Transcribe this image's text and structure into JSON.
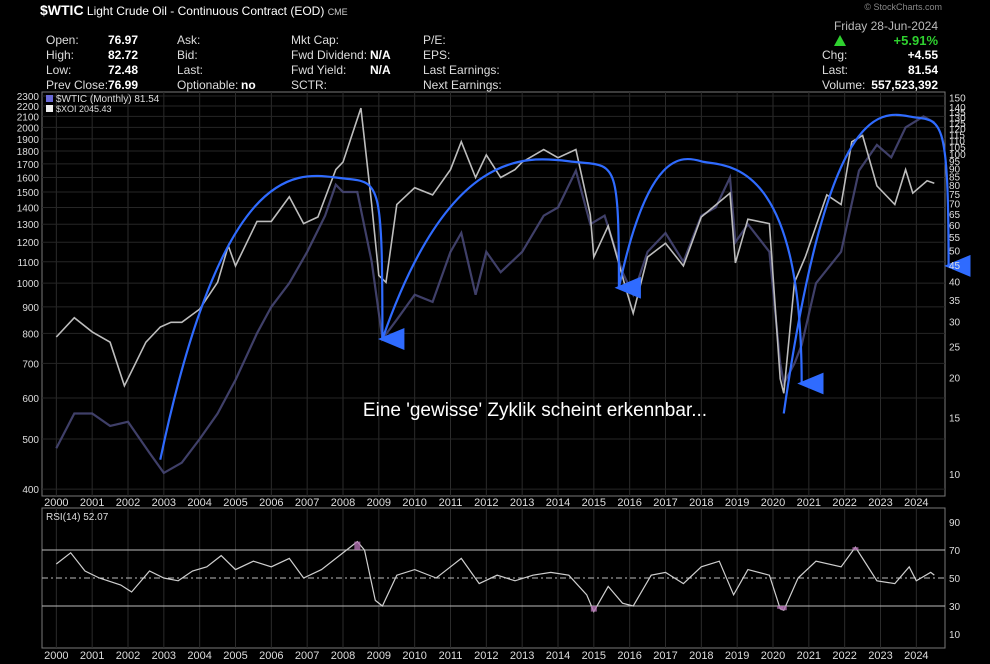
{
  "header": {
    "symbol": "$WTIC",
    "name": "Light Crude Oil - Continuous Contract (EOD)",
    "exchange": "CME",
    "copyright": "© StockCharts.com",
    "date": "Friday  28-Jun-2024",
    "change_pct": "+5.91%",
    "col1": [
      {
        "label": "Open:",
        "value": "76.97"
      },
      {
        "label": "High:",
        "value": "82.72"
      },
      {
        "label": "Low:",
        "value": "72.48"
      },
      {
        "label": "Prev Close:",
        "value": "76.99"
      }
    ],
    "col2": [
      {
        "label": "Ask:",
        "value": ""
      },
      {
        "label": "Bid:",
        "value": ""
      },
      {
        "label": "Last:",
        "value": ""
      },
      {
        "label": "Optionable:",
        "value": "no"
      }
    ],
    "col3": [
      {
        "label": "Mkt Cap:",
        "value": ""
      },
      {
        "label": "Fwd Dividend:",
        "value": "N/A"
      },
      {
        "label": "Fwd Yield:",
        "value": "N/A"
      },
      {
        "label": "SCTR:",
        "value": ""
      }
    ],
    "col4": [
      {
        "label": "P/E:"
      },
      {
        "label": "EPS:"
      },
      {
        "label": "Last Earnings:"
      },
      {
        "label": "Next Earnings:"
      }
    ],
    "col5": [
      {
        "label": "Chg:",
        "value": "+4.55"
      },
      {
        "label": "Last:",
        "value": "81.54"
      },
      {
        "label": "Volume:",
        "value": "557,523,392"
      }
    ]
  },
  "legend": {
    "primary": "$WTIC (Monthly) 81.54",
    "secondary": "$XOI 2045.43"
  },
  "annotation": "Eine 'gewisse' Zyklik scheint erkennbar...",
  "rsi_label": "RSI(14) 52.07",
  "colors": {
    "arcs": "#2f6bff",
    "rsi_overbought": "#b070b0",
    "up": "#27d427"
  },
  "chart_data": {
    "type": "line",
    "x_years": [
      "2000",
      "2001",
      "2002",
      "2003",
      "2004",
      "2005",
      "2006",
      "2007",
      "2008",
      "2009",
      "2010",
      "2011",
      "2012",
      "2013",
      "2014",
      "2015",
      "2016",
      "2017",
      "2018",
      "2019",
      "2020",
      "2021",
      "2022",
      "2023",
      "2024"
    ],
    "left_axis": {
      "scale": "log",
      "ticks": [
        400,
        500,
        600,
        700,
        800,
        900,
        1000,
        1100,
        1200,
        1300,
        1400,
        1500,
        1600,
        1700,
        1800,
        1900,
        2000,
        2100,
        2200,
        2300
      ]
    },
    "right_axis": {
      "scale": "log",
      "ticks": [
        10,
        15,
        20,
        25,
        30,
        35,
        40,
        45,
        50,
        55,
        60,
        65,
        70,
        75,
        80,
        85,
        90,
        95,
        100,
        105,
        110,
        115,
        120,
        125,
        130,
        135,
        140,
        150
      ]
    },
    "series": [
      {
        "name": "$WTIC (Monthly)",
        "axis": "right",
        "points": [
          [
            2000.0,
            27
          ],
          [
            2000.5,
            31
          ],
          [
            2001.0,
            28
          ],
          [
            2001.5,
            26
          ],
          [
            2001.9,
            19
          ],
          [
            2002.5,
            26
          ],
          [
            2002.9,
            29
          ],
          [
            2003.2,
            30
          ],
          [
            2003.5,
            30
          ],
          [
            2004.0,
            33
          ],
          [
            2004.5,
            40
          ],
          [
            2004.8,
            52
          ],
          [
            2005.0,
            45
          ],
          [
            2005.6,
            62
          ],
          [
            2006.0,
            62
          ],
          [
            2006.5,
            74
          ],
          [
            2006.9,
            61
          ],
          [
            2007.3,
            64
          ],
          [
            2007.8,
            90
          ],
          [
            2008.0,
            95
          ],
          [
            2008.5,
            140
          ],
          [
            2008.8,
            70
          ],
          [
            2009.0,
            42
          ],
          [
            2009.2,
            40
          ],
          [
            2009.5,
            70
          ],
          [
            2010.0,
            79
          ],
          [
            2010.5,
            75
          ],
          [
            2011.0,
            90
          ],
          [
            2011.3,
            110
          ],
          [
            2011.7,
            85
          ],
          [
            2012.0,
            100
          ],
          [
            2012.4,
            85
          ],
          [
            2012.8,
            90
          ],
          [
            2013.0,
            95
          ],
          [
            2013.6,
            104
          ],
          [
            2014.0,
            98
          ],
          [
            2014.5,
            104
          ],
          [
            2014.9,
            65
          ],
          [
            2015.0,
            48
          ],
          [
            2015.4,
            60
          ],
          [
            2015.9,
            38
          ],
          [
            2016.1,
            32
          ],
          [
            2016.5,
            48
          ],
          [
            2017.0,
            53
          ],
          [
            2017.5,
            45
          ],
          [
            2018.0,
            64
          ],
          [
            2018.8,
            76
          ],
          [
            2018.95,
            46
          ],
          [
            2019.3,
            63
          ],
          [
            2019.9,
            61
          ],
          [
            2020.2,
            20
          ],
          [
            2020.3,
            18
          ],
          [
            2020.6,
            40
          ],
          [
            2020.9,
            48
          ],
          [
            2021.5,
            75
          ],
          [
            2021.9,
            70
          ],
          [
            2022.2,
            110
          ],
          [
            2022.5,
            115
          ],
          [
            2022.9,
            80
          ],
          [
            2023.4,
            70
          ],
          [
            2023.7,
            90
          ],
          [
            2023.9,
            76
          ],
          [
            2024.3,
            83
          ],
          [
            2024.5,
            81.54
          ]
        ]
      },
      {
        "name": "$XOI",
        "axis": "left",
        "points": [
          [
            2000.0,
            480
          ],
          [
            2000.5,
            560
          ],
          [
            2001.0,
            560
          ],
          [
            2001.5,
            530
          ],
          [
            2002.0,
            540
          ],
          [
            2002.6,
            470
          ],
          [
            2003.0,
            430
          ],
          [
            2003.5,
            450
          ],
          [
            2004.0,
            500
          ],
          [
            2004.5,
            560
          ],
          [
            2005.0,
            650
          ],
          [
            2005.6,
            800
          ],
          [
            2006.0,
            900
          ],
          [
            2006.5,
            1000
          ],
          [
            2007.0,
            1150
          ],
          [
            2007.5,
            1350
          ],
          [
            2007.8,
            1550
          ],
          [
            2008.0,
            1500
          ],
          [
            2008.4,
            1500
          ],
          [
            2008.8,
            1100
          ],
          [
            2009.1,
            780
          ],
          [
            2009.5,
            850
          ],
          [
            2010.0,
            950
          ],
          [
            2010.5,
            920
          ],
          [
            2011.0,
            1150
          ],
          [
            2011.3,
            1250
          ],
          [
            2011.7,
            950
          ],
          [
            2012.0,
            1150
          ],
          [
            2012.4,
            1050
          ],
          [
            2013.0,
            1150
          ],
          [
            2013.6,
            1350
          ],
          [
            2014.0,
            1400
          ],
          [
            2014.5,
            1650
          ],
          [
            2014.9,
            1300
          ],
          [
            2015.3,
            1350
          ],
          [
            2015.8,
            1050
          ],
          [
            2016.1,
            950
          ],
          [
            2016.5,
            1150
          ],
          [
            2017.0,
            1250
          ],
          [
            2017.5,
            1100
          ],
          [
            2018.0,
            1350
          ],
          [
            2018.4,
            1400
          ],
          [
            2018.8,
            1600
          ],
          [
            2018.95,
            1200
          ],
          [
            2019.3,
            1300
          ],
          [
            2019.9,
            1150
          ],
          [
            2020.2,
            700
          ],
          [
            2020.3,
            640
          ],
          [
            2020.6,
            700
          ],
          [
            2020.8,
            760
          ],
          [
            2021.2,
            1000
          ],
          [
            2021.9,
            1150
          ],
          [
            2022.4,
            1650
          ],
          [
            2022.9,
            1850
          ],
          [
            2023.3,
            1750
          ],
          [
            2023.7,
            2000
          ],
          [
            2024.2,
            2100
          ],
          [
            2024.5,
            2045
          ]
        ]
      },
      {
        "name": "RSI(14)",
        "axis": "rsi",
        "ticks": [
          10,
          30,
          50,
          70,
          90
        ],
        "points": [
          [
            2000.0,
            60
          ],
          [
            2000.4,
            68
          ],
          [
            2000.8,
            55
          ],
          [
            2001.2,
            50
          ],
          [
            2001.8,
            45
          ],
          [
            2002.1,
            40
          ],
          [
            2002.6,
            55
          ],
          [
            2003.0,
            50
          ],
          [
            2003.4,
            48
          ],
          [
            2003.8,
            55
          ],
          [
            2004.2,
            58
          ],
          [
            2004.6,
            66
          ],
          [
            2005.0,
            56
          ],
          [
            2005.5,
            62
          ],
          [
            2006.0,
            58
          ],
          [
            2006.5,
            64
          ],
          [
            2006.9,
            50
          ],
          [
            2007.4,
            56
          ],
          [
            2007.9,
            66
          ],
          [
            2008.4,
            76
          ],
          [
            2008.6,
            70
          ],
          [
            2008.9,
            34
          ],
          [
            2009.1,
            30
          ],
          [
            2009.5,
            52
          ],
          [
            2010.0,
            56
          ],
          [
            2010.6,
            50
          ],
          [
            2011.0,
            58
          ],
          [
            2011.3,
            64
          ],
          [
            2011.8,
            46
          ],
          [
            2012.3,
            52
          ],
          [
            2012.8,
            48
          ],
          [
            2013.3,
            52
          ],
          [
            2013.8,
            54
          ],
          [
            2014.3,
            52
          ],
          [
            2014.8,
            38
          ],
          [
            2015.0,
            26
          ],
          [
            2015.4,
            44
          ],
          [
            2015.8,
            32
          ],
          [
            2016.1,
            30
          ],
          [
            2016.6,
            52
          ],
          [
            2017.0,
            54
          ],
          [
            2017.5,
            46
          ],
          [
            2018.0,
            58
          ],
          [
            2018.5,
            62
          ],
          [
            2018.9,
            38
          ],
          [
            2019.3,
            56
          ],
          [
            2019.9,
            52
          ],
          [
            2020.2,
            28
          ],
          [
            2020.3,
            27
          ],
          [
            2020.7,
            50
          ],
          [
            2021.2,
            62
          ],
          [
            2021.9,
            58
          ],
          [
            2022.3,
            72
          ],
          [
            2022.6,
            60
          ],
          [
            2022.9,
            48
          ],
          [
            2023.4,
            46
          ],
          [
            2023.8,
            58
          ],
          [
            2024.0,
            48
          ],
          [
            2024.4,
            54
          ],
          [
            2024.5,
            52.07
          ]
        ]
      }
    ]
  }
}
